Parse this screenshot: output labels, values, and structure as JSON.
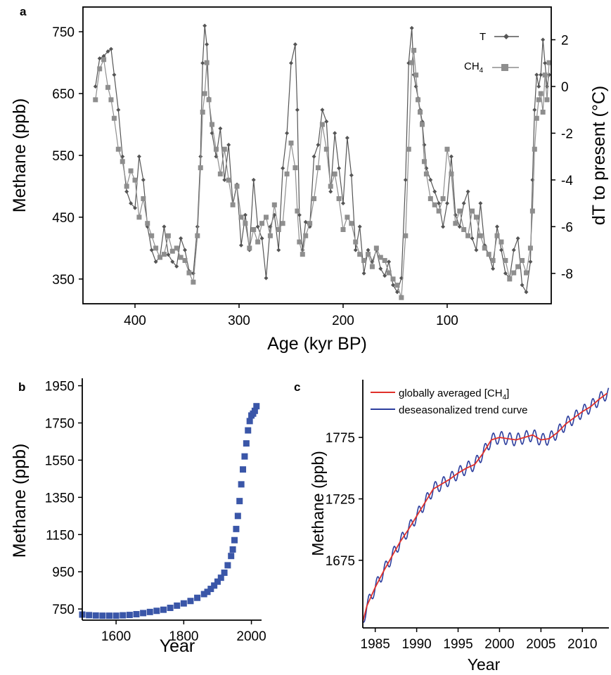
{
  "colors": {
    "temperature": "#555555",
    "methane_core": "#8e8e8e",
    "historic_methane": "#3a56a8",
    "globally_averaged": "#e0302a",
    "deseasonalized": "#2c3e9e"
  },
  "chart_data": [
    {
      "panel": "a",
      "type": "line",
      "xlabel": "Age (kyr BP)",
      "ylabel": "Methane (ppb)",
      "y2label": "dT to present (°C)",
      "xlim": [
        450,
        0
      ],
      "ylim": [
        310,
        790
      ],
      "y2lim": [
        -9.3,
        3.4
      ],
      "xticks": [
        400,
        300,
        200,
        100
      ],
      "yticks": [
        350,
        450,
        550,
        650,
        750
      ],
      "y2ticks": [
        -8,
        -6,
        -4,
        -2,
        0,
        2
      ],
      "legend_position": "top-right",
      "series": [
        {
          "name": "T",
          "axis": "right",
          "marker": "diamond",
          "x": [
            438,
            434,
            430,
            426,
            423,
            420,
            416,
            412,
            408,
            404,
            400,
            396,
            392,
            388,
            384,
            380,
            376,
            372,
            368,
            364,
            360,
            356,
            352,
            348,
            344,
            340,
            337,
            335,
            333,
            331,
            329,
            326,
            322,
            318,
            314,
            310,
            306,
            302,
            298,
            294,
            290,
            286,
            282,
            278,
            274,
            270,
            266,
            262,
            258,
            254,
            250,
            246,
            244,
            242,
            239,
            236,
            232,
            228,
            224,
            220,
            216,
            212,
            208,
            204,
            200,
            196,
            192,
            188,
            184,
            180,
            176,
            172,
            168,
            164,
            160,
            156,
            152,
            148,
            144,
            140,
            137,
            134,
            132,
            130,
            128,
            126,
            124,
            122,
            120,
            116,
            112,
            108,
            104,
            100,
            96,
            92,
            88,
            84,
            80,
            76,
            72,
            68,
            64,
            60,
            56,
            52,
            48,
            44,
            40,
            36,
            32,
            28,
            24,
            20,
            18,
            16,
            14,
            12,
            10,
            8,
            6,
            4,
            2
          ],
          "y": [
            0,
            1.2,
            1.3,
            1.5,
            1.6,
            0.5,
            -1,
            -3,
            -4.5,
            -5,
            -5.2,
            -3,
            -4,
            -6,
            -7,
            -7.5,
            -7.3,
            -6,
            -7.2,
            -7.5,
            -7.7,
            -6.5,
            -7,
            -7.9,
            -8,
            -6,
            -3,
            1,
            2.6,
            1.8,
            -0.5,
            -2,
            -3,
            -1.8,
            -4,
            -2.5,
            -5,
            -4.2,
            -6.8,
            -5.5,
            -7,
            -4,
            -6,
            -6.5,
            -8.2,
            -6,
            -5.5,
            -7,
            -3.5,
            -2,
            1,
            1.8,
            -1,
            -5.5,
            -7,
            -5.8,
            -6,
            -3,
            -2.5,
            -1,
            -1.5,
            -4.5,
            -2,
            -3.5,
            -5,
            -2.2,
            -3.8,
            -7,
            -6,
            -8,
            -7,
            -7.5,
            -7,
            -7.8,
            -8.1,
            -7.5,
            -8.5,
            -8.8,
            -8.2,
            -4,
            1,
            2.5,
            0.5,
            0,
            -0.5,
            -1,
            -1.5,
            -2.5,
            -3.5,
            -4,
            -4.5,
            -5,
            -6,
            -5,
            -3,
            -5.5,
            -6,
            -5,
            -4.5,
            -6.5,
            -7,
            -5,
            -6.8,
            -7.2,
            -7.8,
            -6,
            -7,
            -8,
            -8.2,
            -7,
            -6.5,
            -8.5,
            -8.8,
            -7.5,
            -4,
            -1,
            0.5,
            0,
            0.5,
            2,
            1,
            0,
            0.5
          ]
        },
        {
          "name": "CH4",
          "axis": "left",
          "marker": "square",
          "x": [
            438,
            434,
            430,
            426,
            423,
            420,
            416,
            412,
            408,
            404,
            400,
            396,
            392,
            388,
            384,
            380,
            376,
            372,
            368,
            364,
            360,
            356,
            352,
            348,
            344,
            340,
            337,
            335,
            333,
            331,
            329,
            326,
            322,
            318,
            314,
            310,
            306,
            302,
            298,
            294,
            290,
            286,
            282,
            278,
            274,
            270,
            266,
            262,
            258,
            254,
            250,
            246,
            244,
            242,
            239,
            236,
            232,
            228,
            224,
            220,
            216,
            212,
            208,
            204,
            200,
            196,
            192,
            188,
            184,
            180,
            176,
            172,
            168,
            164,
            160,
            156,
            152,
            148,
            144,
            140,
            137,
            134,
            132,
            130,
            128,
            126,
            124,
            122,
            120,
            116,
            112,
            108,
            104,
            100,
            96,
            92,
            88,
            84,
            80,
            76,
            72,
            68,
            64,
            60,
            56,
            52,
            48,
            44,
            40,
            36,
            32,
            28,
            24,
            20,
            18,
            16,
            14,
            12,
            10,
            8,
            6,
            4,
            2
          ],
          "y": [
            640,
            690,
            705,
            660,
            640,
            610,
            560,
            540,
            500,
            525,
            510,
            450,
            480,
            440,
            420,
            400,
            385,
            390,
            420,
            395,
            400,
            385,
            380,
            360,
            345,
            420,
            530,
            620,
            650,
            700,
            640,
            600,
            560,
            520,
            560,
            510,
            470,
            500,
            450,
            440,
            400,
            430,
            410,
            440,
            450,
            420,
            470,
            430,
            440,
            520,
            570,
            530,
            460,
            410,
            390,
            420,
            440,
            480,
            530,
            600,
            560,
            500,
            520,
            480,
            430,
            450,
            440,
            410,
            390,
            380,
            390,
            370,
            400,
            385,
            380,
            360,
            350,
            340,
            320,
            420,
            560,
            700,
            720,
            680,
            640,
            620,
            600,
            540,
            520,
            480,
            470,
            460,
            480,
            560,
            520,
            440,
            460,
            430,
            420,
            460,
            450,
            420,
            400,
            390,
            380,
            420,
            410,
            380,
            350,
            360,
            370,
            380,
            360,
            400,
            460,
            560,
            610,
            640,
            650,
            620,
            680,
            640,
            700
          ]
        }
      ]
    },
    {
      "panel": "b",
      "type": "scatter",
      "xlabel": "Year",
      "ylabel": "Methane (ppb)",
      "xlim": [
        1500,
        2030
      ],
      "ylim": [
        690,
        1990
      ],
      "xticks": [
        1600,
        1800,
        2000
      ],
      "yticks": [
        750,
        950,
        1150,
        1350,
        1550,
        1750,
        1950
      ],
      "series": [
        {
          "x": [
            1500,
            1520,
            1540,
            1560,
            1580,
            1600,
            1620,
            1640,
            1660,
            1680,
            1700,
            1720,
            1740,
            1760,
            1780,
            1800,
            1820,
            1840,
            1860,
            1870,
            1880,
            1890,
            1900,
            1910,
            1920,
            1930,
            1940,
            1945,
            1950,
            1955,
            1960,
            1965,
            1970,
            1975,
            1980,
            1985,
            1990,
            1995,
            2000,
            2005,
            2010,
            2015
          ],
          "y": [
            720,
            717,
            715,
            714,
            714,
            714,
            716,
            718,
            722,
            728,
            734,
            740,
            746,
            756,
            768,
            780,
            793,
            810,
            830,
            842,
            858,
            876,
            897,
            918,
            945,
            985,
            1035,
            1070,
            1120,
            1180,
            1250,
            1330,
            1420,
            1500,
            1570,
            1640,
            1710,
            1760,
            1790,
            1800,
            1815,
            1840
          ]
        }
      ]
    },
    {
      "panel": "c",
      "type": "line",
      "xlabel": "Year",
      "ylabel": "Methane (ppb)",
      "xlim": [
        1983.5,
        2013.2
      ],
      "ylim": [
        1620,
        1822
      ],
      "xticks": [
        1985,
        1990,
        1995,
        2000,
        2005,
        2010
      ],
      "yticks": [
        1675,
        1725,
        1775
      ],
      "legend_position": "top-left",
      "series": [
        {
          "name": "globally averaged [CH4]",
          "x": [
            1983.5,
            1984,
            1985,
            1986,
            1987,
            1988,
            1989,
            1990,
            1991,
            1992,
            1993,
            1994,
            1995,
            1996,
            1997,
            1998,
            1999,
            2000,
            2001,
            2002,
            2003,
            2004,
            2005,
            2006,
            2007,
            2008,
            2009,
            2010,
            2011,
            2012,
            2013
          ],
          "y": [
            1625,
            1638,
            1653,
            1666,
            1678,
            1690,
            1700,
            1711,
            1722,
            1733,
            1737,
            1741,
            1746,
            1750,
            1753,
            1762,
            1773,
            1775,
            1774,
            1773,
            1775,
            1777,
            1773,
            1774,
            1779,
            1786,
            1791,
            1796,
            1800,
            1806,
            1811
          ]
        },
        {
          "name": "deseasonalized trend curve",
          "x": [
            1983.5,
            1984,
            1985,
            1986,
            1987,
            1988,
            1989,
            1990,
            1991,
            1992,
            1993,
            1994,
            1995,
            1996,
            1997,
            1998,
            1999,
            2000,
            2001,
            2002,
            2003,
            2004,
            2005,
            2006,
            2007,
            2008,
            2009,
            2010,
            2011,
            2012,
            2013
          ],
          "y": [
            1625,
            1638,
            1653,
            1666,
            1678,
            1690,
            1700,
            1711,
            1722,
            1733,
            1737,
            1741,
            1746,
            1750,
            1753,
            1762,
            1773,
            1775,
            1774,
            1773,
            1775,
            1777,
            1773,
            1774,
            1779,
            1786,
            1791,
            1796,
            1800,
            1806,
            1811
          ],
          "seasonal_amplitude": 5
        }
      ]
    }
  ],
  "labels": {
    "panel_a": "a",
    "panel_b": "b",
    "panel_c": "c",
    "legend_a_t": "T",
    "legend_a_ch4": "CH",
    "legend_a_ch4_sub": "4",
    "legend_c_1_pre": "globally averaged [CH",
    "legend_c_1_sub": "4",
    "legend_c_1_post": "]",
    "legend_c_2": "deseasonalized trend curve"
  }
}
